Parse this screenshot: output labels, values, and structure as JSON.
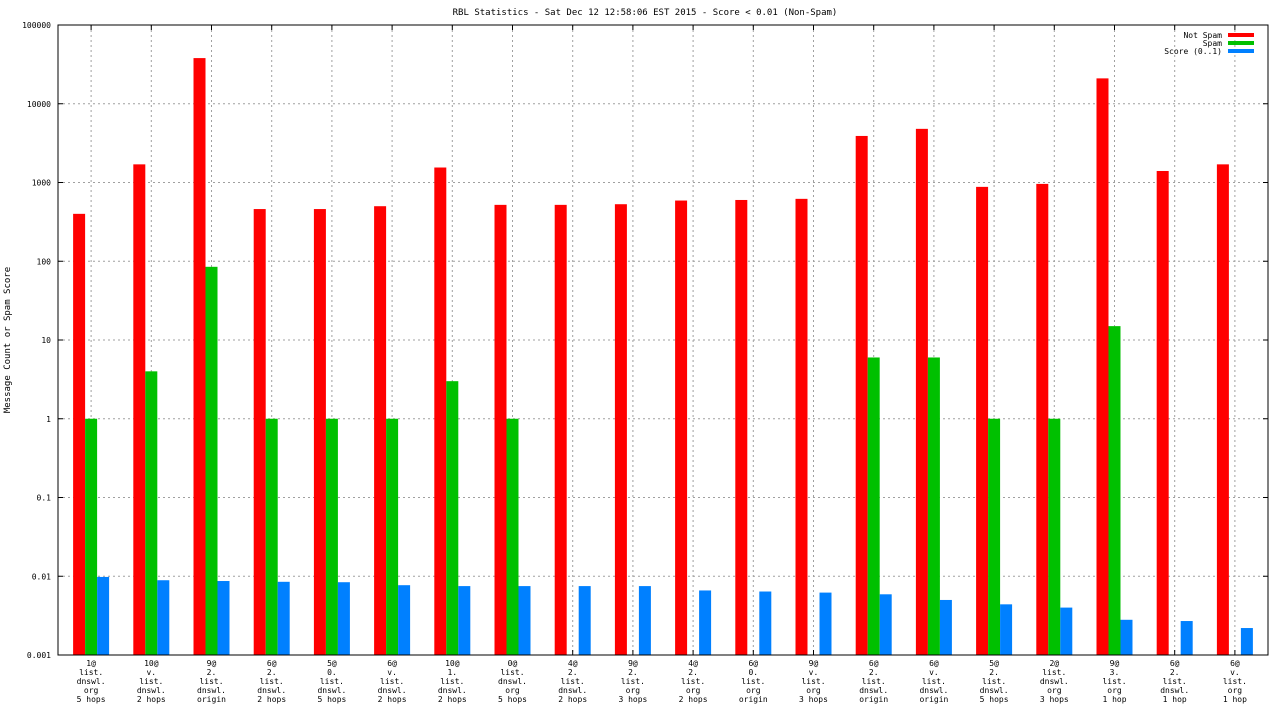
{
  "chart_data": {
    "type": "bar",
    "title": "RBL Statistics - Sat Dec 12 12:58:06 EST 2015 - Score < 0.01 (Non-Spam)",
    "ylabel": "Message Count or Spam Score",
    "xlabel": "",
    "yscale": "log",
    "ylim": [
      0.001,
      100000
    ],
    "yticks": [
      "0.001",
      "0.01",
      "0.1",
      "1",
      "10",
      "100",
      "1000",
      "10000",
      "100000"
    ],
    "grid": true,
    "legend_position": "top-right",
    "categories": [
      [
        "1@",
        "list.",
        "dnswl.",
        "org",
        "5 hops"
      ],
      [
        "10@",
        "v.",
        "list.",
        "dnswl.",
        "2 hops"
      ],
      [
        "9@",
        "2.",
        "list.",
        "dnswl.",
        "origin"
      ],
      [
        "6@",
        "2.",
        "list.",
        "dnswl.",
        "2 hops"
      ],
      [
        "5@",
        "0.",
        "list.",
        "dnswl.",
        "5 hops"
      ],
      [
        "6@",
        "v.",
        "list.",
        "dnswl.",
        "2 hops"
      ],
      [
        "10@",
        "1.",
        "list.",
        "dnswl.",
        "2 hops"
      ],
      [
        "0@",
        "list.",
        "dnswl.",
        "org",
        "5 hops"
      ],
      [
        "4@",
        "2.",
        "list.",
        "dnswl.",
        "2 hops"
      ],
      [
        "9@",
        "2.",
        "list.",
        "org",
        "3 hops"
      ],
      [
        "4@",
        "2.",
        "list.",
        "org",
        "2 hops"
      ],
      [
        "6@",
        "0.",
        "list.",
        "org",
        "origin"
      ],
      [
        "9@",
        "v.",
        "list.",
        "org",
        "3 hops"
      ],
      [
        "6@",
        "2.",
        "list.",
        "dnswl.",
        "origin"
      ],
      [
        "6@",
        "v.",
        "list.",
        "dnswl.",
        "origin"
      ],
      [
        "5@",
        "2.",
        "list.",
        "dnswl.",
        "5 hops"
      ],
      [
        "2@",
        "list.",
        "dnswl.",
        "org",
        "3 hops"
      ],
      [
        "9@",
        "3.",
        "list.",
        "org",
        "1 hop"
      ],
      [
        "6@",
        "2.",
        "list.",
        "dnswl.",
        "1 hop"
      ],
      [
        "6@",
        "v.",
        "list.",
        "org",
        "1 hop"
      ]
    ],
    "series": [
      {
        "name": "Not Spam",
        "color": "#ff0000",
        "values": [
          400,
          1700,
          38000,
          460,
          460,
          500,
          1550,
          520,
          520,
          530,
          590,
          600,
          620,
          3900,
          4800,
          880,
          960,
          21000,
          1400,
          1700
        ]
      },
      {
        "name": "Spam",
        "color": "#00c000",
        "values": [
          1,
          4,
          85,
          1,
          1,
          1,
          3,
          1,
          null,
          null,
          null,
          null,
          null,
          6,
          6,
          1,
          1,
          15,
          null,
          null
        ]
      },
      {
        "name": "Score (0..1)",
        "color": "#0080ff",
        "values": [
          0.0098,
          0.0089,
          0.0087,
          0.0085,
          0.0084,
          0.0077,
          0.0075,
          0.0075,
          0.0075,
          0.0075,
          0.0066,
          0.0064,
          0.0062,
          0.0059,
          0.005,
          0.0044,
          0.004,
          0.0028,
          0.0027,
          0.0022
        ]
      }
    ]
  }
}
